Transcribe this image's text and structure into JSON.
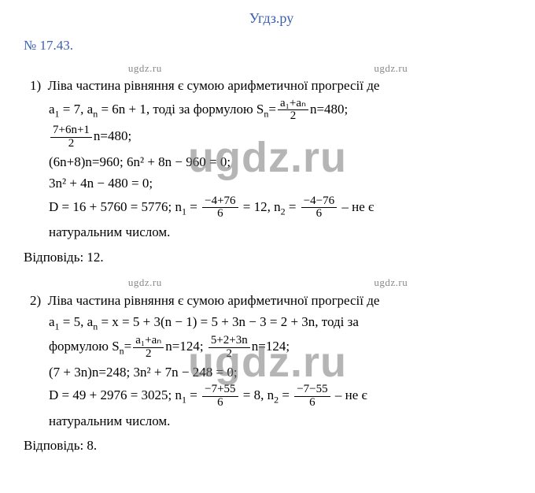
{
  "header": "Угдз.ру",
  "wm_small": "ugdz.ru",
  "wm_big": "ugdz.ru",
  "ex_num": "№ 17.43.",
  "p1": {
    "lead": "1)  Ліва частина рівняння є сумою арифметичної прогресії де",
    "l1_a": "a",
    "l1_a1": "1",
    "l1_eq1": " = 7,  a",
    "l1_an": "n",
    "l1_eq2": " = 6n + 1, тоді за формулою S",
    "l1_sn": "n",
    "l1_eq3": "=",
    "frac1_num": "a₁+aₙ",
    "frac1_den": "2",
    "l1_eq4": "n=480;",
    "frac2_num": "7+6n+1",
    "frac2_den": "2",
    "l2_eq": "n=480;",
    "l3": "(6n+8)n=960; 6n² + 8n − 960 = 0;",
    "l4": "3n² + 4n − 480 = 0;",
    "l5_a": "D = 16 + 5760 = 5776;  n",
    "l5_n1": "1",
    "l5_b": " = ",
    "frac3_num": "−4+76",
    "frac3_den": "6",
    "l5_c": " = 12,  n",
    "l5_n2": "2",
    "l5_d": " = ",
    "frac4_num": "−4−76",
    "frac4_den": "6",
    "l5_e": " – не є",
    "l6": "натуральним числом.",
    "ans": "Відповідь: 12."
  },
  "p2": {
    "lead": "2)  Ліва частина рівняння є сумою арифметичної прогресії де",
    "l1_a": "a",
    "l1_a1": "1",
    "l1_eq1": " = 5,  a",
    "l1_an": "n",
    "l1_eq2": " = x = 5 + 3(n − 1) = 5 + 3n − 3 = 2 + 3n, тоді за",
    "l2_a": "формулою S",
    "l2_sn": "n",
    "l2_b": "=",
    "frac5_num": "a₁+aₙ",
    "frac5_den": "2",
    "l2_c": "n=124; ",
    "frac6_num": "5+2+3n",
    "frac6_den": "2",
    "l2_d": "n=124;",
    "l3": "(7 + 3n)n=248; 3n² + 7n − 248 = 0;",
    "l4_a": "D = 49 + 2976 = 3025;  n",
    "l4_n1": "1",
    "l4_b": " = ",
    "frac7_num": "−7+55",
    "frac7_den": "6",
    "l4_c": " = 8,  n",
    "l4_n2": "2",
    "l4_d": " = ",
    "frac8_num": "−7−55",
    "frac8_den": "6",
    "l4_e": " – не є",
    "l5": "натуральним числом.",
    "ans": "Відповідь: 8."
  }
}
